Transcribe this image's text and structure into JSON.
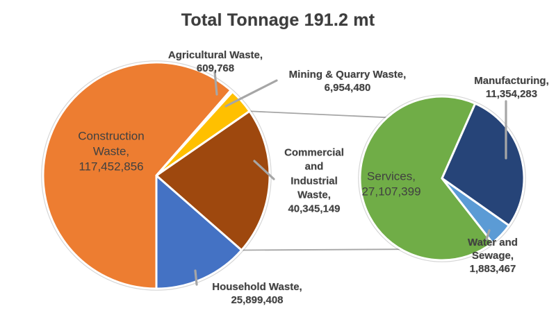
{
  "labels": {
    "title": "Total Tonnage 191.2 mt",
    "construction": "Construction\nWaste,\n117,452,856",
    "agricultural": "Agricultural Waste,\n609,768",
    "mining": "Mining & Quarry Waste,\n6,954,480",
    "commercial_industrial": "Commercial\nand\nIndustrial\nWaste,\n40,345,149",
    "household": "Household Waste,\n25,899,408",
    "services": "Services,\n27,107,399",
    "manufacturing": "Manufacturing,\n11,354,283",
    "water_sewage": "Water and Sewage,\n1,883,467"
  },
  "colors": {
    "text": "#404040",
    "leader_line": "#A6A6A6",
    "slice_border": "#FFFFFF"
  },
  "chart_data": {
    "type": "pie",
    "subtype": "pie-of-pie",
    "title": "Total Tonnage 191.2 mt",
    "value_units": "tonnes",
    "total_label": "191.2 mt",
    "legend": "none",
    "main_pie": {
      "start_angle_deg": 180,
      "slices": [
        {
          "label": "Construction Waste",
          "value": 117452856,
          "color": "#ED7D31"
        },
        {
          "label": "Agricultural Waste",
          "value": 609768,
          "color": "#A5A5A5"
        },
        {
          "label": "Mining & Quarry Waste",
          "value": 6954480,
          "color": "#FFC000"
        },
        {
          "label": "Commercial and Industrial Waste",
          "value": 40345149,
          "color": "#9E480E"
        },
        {
          "label": "Household Waste",
          "value": 25899408,
          "color": "#4472C4"
        }
      ]
    },
    "secondary_pie": {
      "start_angle_deg": 142,
      "expands_slice": "Commercial and Industrial Waste",
      "slices": [
        {
          "label": "Services",
          "value": 27107399,
          "color": "#70AD47"
        },
        {
          "label": "Manufacturing",
          "value": 11354283,
          "color": "#264478"
        },
        {
          "label": "Water and Sewage",
          "value": 1883467,
          "color": "#5B9BD5"
        }
      ]
    }
  }
}
